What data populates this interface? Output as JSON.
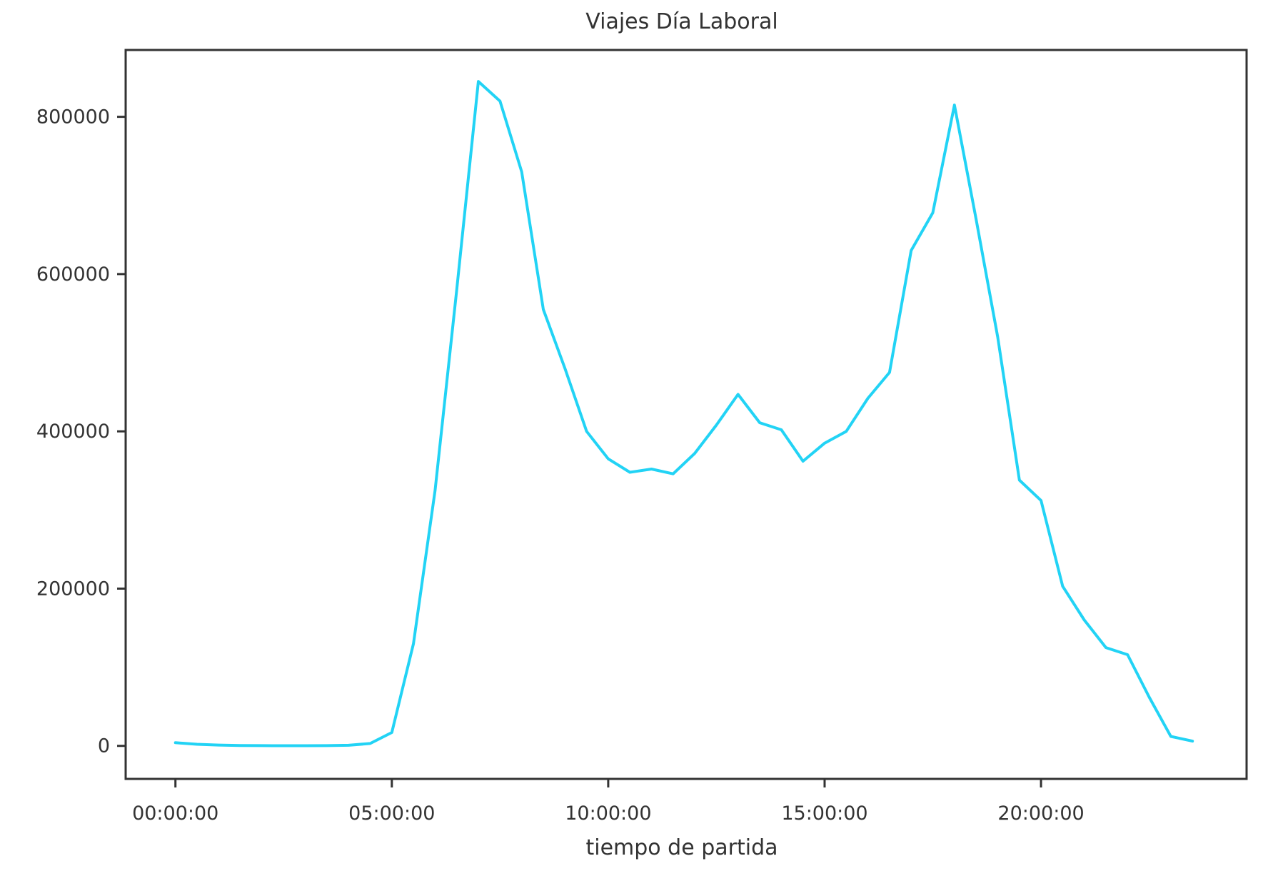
{
  "chart_data": {
    "type": "line",
    "title": "Viajes Día Laboral",
    "xlabel": "tiempo de partida",
    "ylabel": "",
    "x_unit": "hours",
    "xlim": [
      -1.15,
      24.75
    ],
    "ylim": [
      -42000,
      885000
    ],
    "x_ticks": [
      0,
      5,
      10,
      15,
      20
    ],
    "x_tick_labels": [
      "00:00:00",
      "05:00:00",
      "10:00:00",
      "15:00:00",
      "20:00:00"
    ],
    "y_ticks": [
      0,
      200000,
      400000,
      600000,
      800000
    ],
    "y_tick_labels": [
      "0",
      "200000",
      "400000",
      "600000",
      "800000"
    ],
    "grid": false,
    "legend": "none",
    "series": [
      {
        "color": "#22d3f5",
        "x": [
          0,
          0.5,
          1,
          1.5,
          2,
          2.5,
          3,
          3.5,
          4,
          4.5,
          5,
          5.5,
          6,
          6.5,
          7,
          7.5,
          8,
          8.5,
          9,
          9.5,
          10,
          10.5,
          11,
          11.5,
          12,
          12.5,
          13,
          13.5,
          14,
          14.5,
          15,
          15.5,
          16,
          16.5,
          17,
          17.5,
          18,
          18.5,
          19,
          19.5,
          20,
          20.5,
          21,
          21.5,
          22,
          22.5,
          23,
          23.5
        ],
        "values": [
          4000,
          2000,
          1000,
          500,
          300,
          200,
          200,
          300,
          800,
          3000,
          17000,
          130000,
          325000,
          580000,
          845000,
          820000,
          730000,
          555000,
          480000,
          400000,
          365000,
          348000,
          352000,
          346000,
          372000,
          408000,
          447000,
          411000,
          402000,
          362000,
          385000,
          400000,
          442000,
          475000,
          630000,
          678000,
          815000,
          670000,
          520000,
          338000,
          312000,
          203000,
          160000,
          125000,
          116000,
          62000,
          12000,
          6000
        ]
      }
    ]
  }
}
